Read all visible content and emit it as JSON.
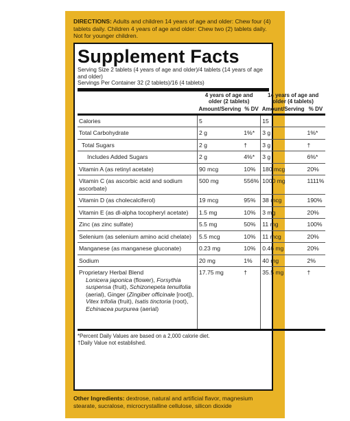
{
  "directions": {
    "label": "DIRECTIONS:",
    "text": "Adults and children 14 years of age and older: Chew four (4) tablets daily. Children 4 years of age and older: Chew two (2) tablets daily. Not for younger children."
  },
  "facts": {
    "title": "Supplement Facts",
    "serving_size": "Serving Size 2 tablets (4 years of age and older)/4 tablets (14 years of age and older)",
    "servings_per_container": "Servings Per Container 32 (2 tablets)/16 (4 tablets)",
    "columns": [
      {
        "group": "4 years of age and older (2 tablets)",
        "amount": "Amount/Serving",
        "dv": "% DV"
      },
      {
        "group": "14 years of age and older (4 tablets)",
        "amount": "Amount/Serving",
        "dv": "% DV"
      }
    ],
    "rows": [
      {
        "name": "Calories",
        "amount_1": "5",
        "amount_2": "15"
      },
      {
        "name": "Total Carbohydrate",
        "amount_1": "2 g",
        "dv_1": "1%*",
        "amount_2": "3 g",
        "dv_2": "1%*"
      },
      {
        "name": "Total Sugars",
        "amount_1": "2 g",
        "dv_1": "†",
        "amount_2": "3 g",
        "dv_2": "†"
      },
      {
        "name": "Includes Added Sugars",
        "amount_1": "2 g",
        "dv_1": "4%*",
        "amount_2": "3 g",
        "dv_2": "6%*"
      },
      {
        "name": "Vitamin A (as retinyl acetate)",
        "amount_1": "90 mcg",
        "dv_1": "10%",
        "amount_2": "180 mcg",
        "dv_2": "20%"
      },
      {
        "name": "Vitamin C (as ascorbic acid and sodium ascorbate)",
        "amount_1": "500 mg",
        "dv_1": "556%",
        "amount_2": "1000 mg",
        "dv_2": "1111%"
      },
      {
        "name": "Vitamin D (as cholecalciferol)",
        "amount_1": "19 mcg",
        "dv_1": "95%",
        "amount_2": "38 mcg",
        "dv_2": "190%"
      },
      {
        "name": "Vitamin E (as dl-alpha tocopheryl acetate)",
        "amount_1": "1.5 mg",
        "dv_1": "10%",
        "amount_2": "3 mg",
        "dv_2": "20%"
      },
      {
        "name": "Zinc (as zinc sulfate)",
        "amount_1": "5.5 mg",
        "dv_1": "50%",
        "amount_2": "11 mg",
        "dv_2": "100%"
      },
      {
        "name": "Selenium (as selenium amino acid chelate)",
        "amount_1": "5.5 mcg",
        "dv_1": "10%",
        "amount_2": "11 mcg",
        "dv_2": "20%"
      },
      {
        "name": "Manganese (as manganese gluconate)",
        "amount_1": "0.23 mg",
        "dv_1": "10%",
        "amount_2": "0.46 mg",
        "dv_2": "20%"
      },
      {
        "name": "Sodium",
        "amount_1": "20 mg",
        "dv_1": "1%",
        "amount_2": "40 mg",
        "dv_2": "2%"
      }
    ],
    "blend": {
      "name": "Proprietary Herbal Blend",
      "amount_1": "17.75 mg",
      "dv_1": "†",
      "amount_2": "35.5 mg",
      "dv_2": "†",
      "ingredients": [
        "Lonicera japonica",
        " (flower), ",
        "Forsythia suspensa",
        " (fruit), ",
        "Schizonepeta tenuifolia",
        " (aerial), Ginger (",
        "Zingiber officinale",
        " [root]), ",
        "Vitex trifolia",
        " (fruit), ",
        "Isatis tinctoria",
        " (root), ",
        "Echinacea purpurea",
        " (aerial)"
      ]
    },
    "footnotes": [
      "*Percent Daily Values are based on a 2,000 calorie diet.",
      "†Daily Value not established."
    ]
  },
  "other_ingredients": {
    "label": "Other Ingredients:",
    "text": "dextrose, natural and artificial flavor, magnesium stearate, sucralose, microcrystalline cellulose, silicon dioxide"
  }
}
